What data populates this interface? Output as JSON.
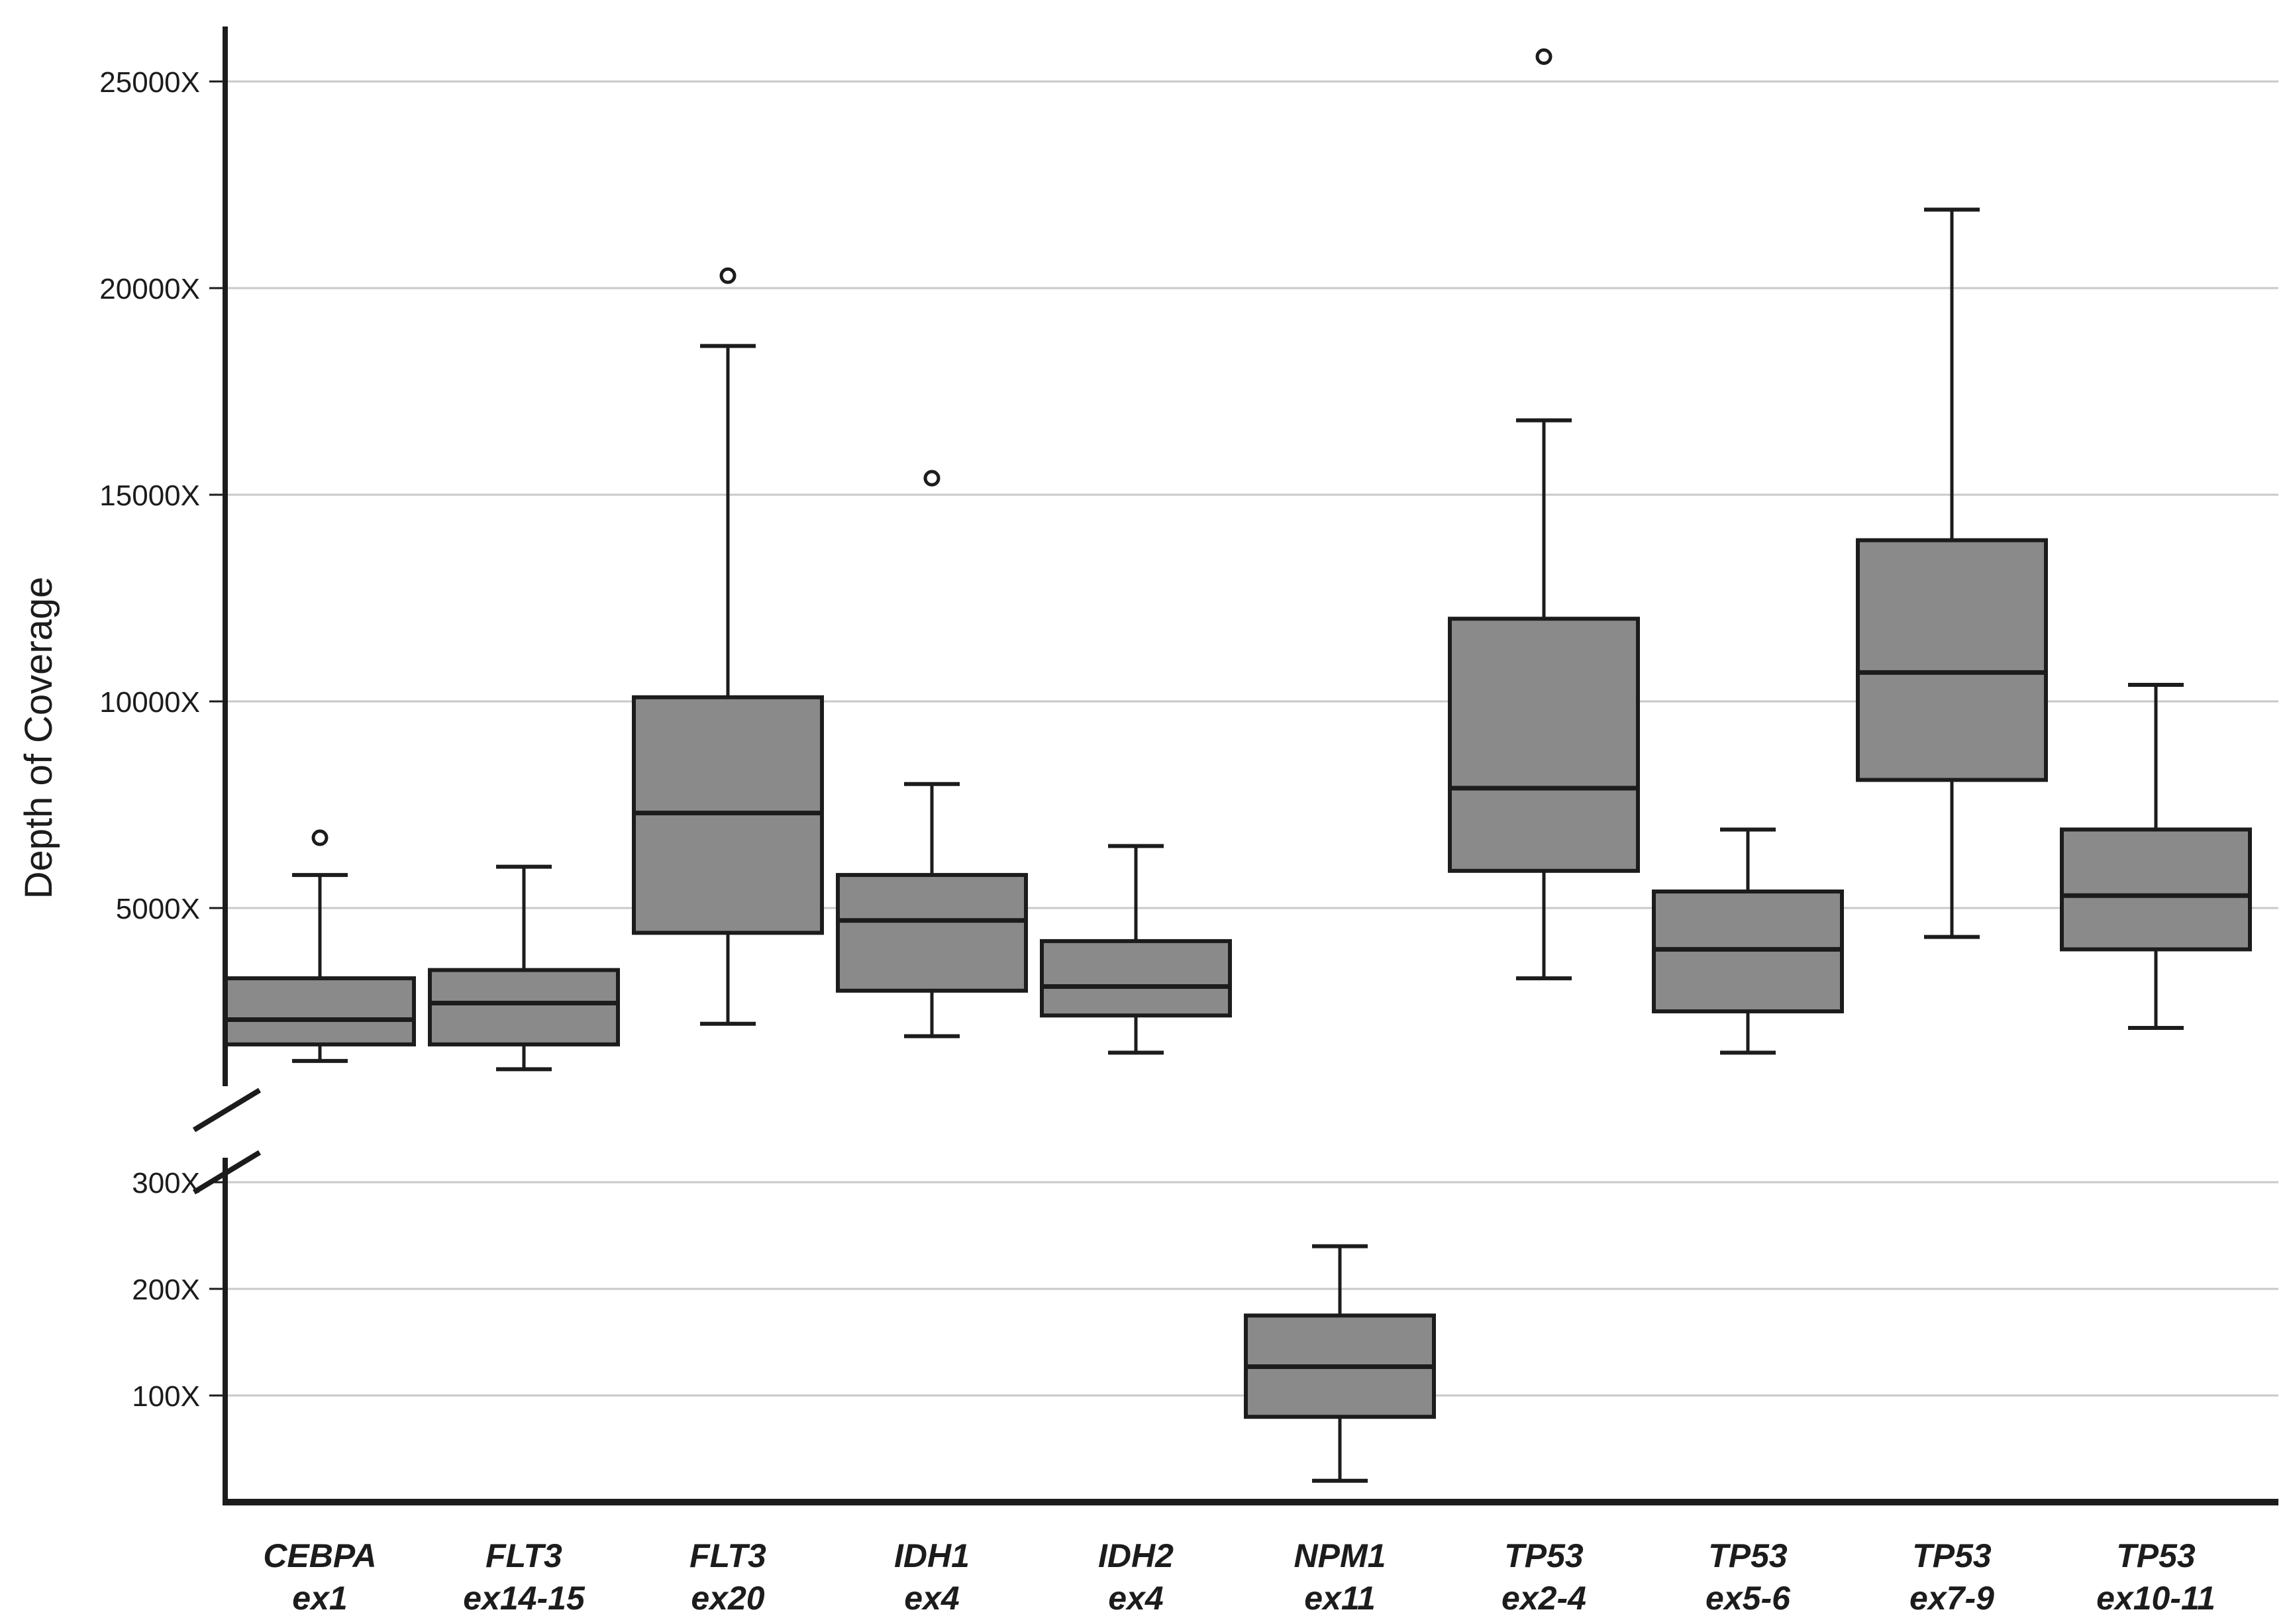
{
  "figure": {
    "y_axis_title": "Depth of Coverage",
    "background_color": "#ffffff"
  },
  "colors": {
    "box_fill": "#8a8a8a",
    "box_stroke": "#1c1c1c",
    "whisker_stroke": "#1c1c1c",
    "gridline": "#c9c9c9",
    "axis": "#1c1c1c",
    "text": "#1c1c1c",
    "outlier_fill": "#ffffff"
  },
  "chart_data": {
    "type": "boxplot",
    "title": "",
    "xlabel": "",
    "ylabel": "Depth of Coverage",
    "grid": "horizontal-only",
    "legend": "none",
    "axis_break": true,
    "upper_panel": {
      "tick_values": [
        5000,
        10000,
        15000,
        20000,
        25000
      ],
      "tick_labels": [
        "5000X",
        "10000X",
        "15000X",
        "20000X",
        "25000X"
      ],
      "value_range": [
        1000,
        26000
      ]
    },
    "lower_panel": {
      "tick_values": [
        100,
        200,
        300
      ],
      "tick_labels": [
        "100X",
        "200X",
        "300X"
      ],
      "value_range": [
        0,
        330
      ]
    },
    "categories": [
      {
        "line1": "CEBPA",
        "line2": "ex1"
      },
      {
        "line1": "FLT3",
        "line2": "ex14-15"
      },
      {
        "line1": "FLT3",
        "line2": "ex20"
      },
      {
        "line1": "IDH1",
        "line2": "ex4"
      },
      {
        "line1": "IDH2",
        "line2": "ex4"
      },
      {
        "line1": "NPM1",
        "line2": "ex11"
      },
      {
        "line1": "TP53",
        "line2": "ex2-4"
      },
      {
        "line1": "TP53",
        "line2": "ex5-6"
      },
      {
        "line1": "TP53",
        "line2": "ex7-9"
      },
      {
        "line1": "TP53",
        "line2": "ex10-11"
      }
    ],
    "boxes": [
      {
        "label": "CEBPA ex1",
        "panel": "upper",
        "whisker_low": 1300,
        "q1": 1700,
        "median": 2300,
        "q3": 3300,
        "whisker_high": 5800,
        "outliers": [
          6700
        ]
      },
      {
        "label": "FLT3 ex14-15",
        "panel": "upper",
        "whisker_low": 1100,
        "q1": 1700,
        "median": 2700,
        "q3": 3500,
        "whisker_high": 6000,
        "outliers": []
      },
      {
        "label": "FLT3 ex20",
        "panel": "upper",
        "whisker_low": 2200,
        "q1": 4400,
        "median": 7300,
        "q3": 10100,
        "whisker_high": 18600,
        "outliers": [
          20300
        ]
      },
      {
        "label": "IDH1 ex4",
        "panel": "upper",
        "whisker_low": 1900,
        "q1": 3000,
        "median": 4700,
        "q3": 5800,
        "whisker_high": 8000,
        "outliers": [
          15400
        ]
      },
      {
        "label": "IDH2 ex4",
        "panel": "upper",
        "whisker_low": 1500,
        "q1": 2400,
        "median": 3100,
        "q3": 4200,
        "whisker_high": 6500,
        "outliers": []
      },
      {
        "label": "NPM1 ex11",
        "panel": "lower",
        "whisker_low": 20,
        "q1": 80,
        "median": 127,
        "q3": 175,
        "whisker_high": 240,
        "outliers": []
      },
      {
        "label": "TP53 ex2-4",
        "panel": "upper",
        "whisker_low": 3300,
        "q1": 5900,
        "median": 7900,
        "q3": 12000,
        "whisker_high": 16800,
        "outliers": [
          25600
        ]
      },
      {
        "label": "TP53 ex5-6",
        "panel": "upper",
        "whisker_low": 1500,
        "q1": 2500,
        "median": 4000,
        "q3": 5400,
        "whisker_high": 6900,
        "outliers": []
      },
      {
        "label": "TP53 ex7-9",
        "panel": "upper",
        "whisker_low": 4300,
        "q1": 8100,
        "median": 10700,
        "q3": 13900,
        "whisker_high": 21900,
        "outliers": []
      },
      {
        "label": "TP53 ex10-11",
        "panel": "upper",
        "whisker_low": 2100,
        "q1": 4000,
        "median": 5300,
        "q3": 6900,
        "whisker_high": 10400,
        "outliers": []
      }
    ]
  }
}
